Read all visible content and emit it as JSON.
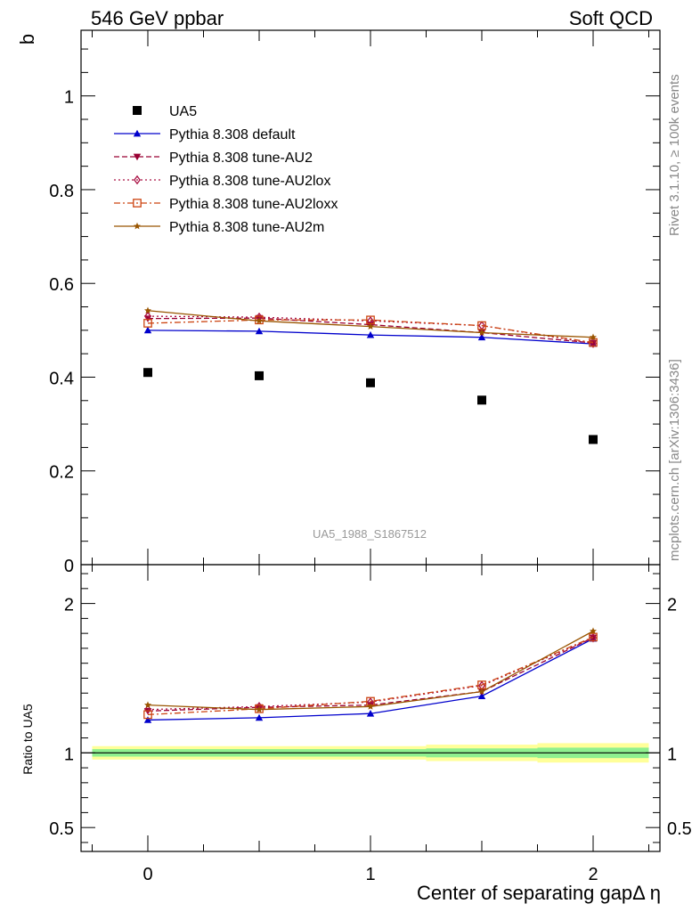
{
  "header": {
    "left_title": "546 GeV ppbar",
    "right_title": "Soft QCD"
  },
  "side_labels": {
    "rivet": "Rivet 3.1.10, ≥ 100k events",
    "source": "mcplots.cern.ch [arXiv:1306:3436]"
  },
  "watermark": "UA5_1988_S1867512",
  "chart_data": [
    {
      "type": "scatter",
      "panel": "main",
      "ylabel": "b",
      "ylim": [
        0,
        1.14
      ],
      "xlim": [
        -0.3,
        2.3
      ],
      "yticks": [
        0,
        0.2,
        0.4,
        0.6,
        0.8,
        1
      ],
      "ytick_labels": [
        "0",
        "0.2",
        "0.4",
        "0.6",
        "0.8",
        "1"
      ],
      "x": [
        0,
        0.5,
        1,
        1.5,
        2
      ],
      "legend_position": "top-left",
      "series": [
        {
          "name": "UA5",
          "kind": "data",
          "color": "#000000",
          "marker": "square",
          "dash": "none",
          "values": [
            0.41,
            0.403,
            0.388,
            0.351,
            0.267
          ]
        },
        {
          "name": "Pythia 8.308 default",
          "kind": "mc",
          "color": "#0000cc",
          "marker": "triangle-up",
          "dash": "none",
          "values": [
            0.5,
            0.498,
            0.49,
            0.485,
            0.471
          ]
        },
        {
          "name": "Pythia 8.308 tune-AU2",
          "kind": "mc",
          "color": "#990033",
          "marker": "triangle-down",
          "dash": "dash",
          "values": [
            0.525,
            0.526,
            0.512,
            0.495,
            0.473
          ]
        },
        {
          "name": "Pythia 8.308 tune-AU2lox",
          "kind": "mc",
          "color": "#aa1144",
          "marker": "diamond-open",
          "dash": "dot",
          "values": [
            0.53,
            0.528,
            0.52,
            0.51,
            0.472
          ]
        },
        {
          "name": "Pythia 8.308 tune-AU2loxx",
          "kind": "mc",
          "color": "#cc4411",
          "marker": "square-open",
          "dash": "dashdot",
          "values": [
            0.515,
            0.522,
            0.522,
            0.51,
            0.474
          ]
        },
        {
          "name": "Pythia 8.308 tune-AU2m",
          "kind": "mc",
          "color": "#995500",
          "marker": "star",
          "dash": "none",
          "values": [
            0.542,
            0.52,
            0.508,
            0.495,
            0.485
          ]
        }
      ]
    },
    {
      "type": "line",
      "panel": "ratio",
      "ylabel": "Ratio to UA5",
      "xlabel": "Center of separating gapΔ η",
      "ylim": [
        0.34,
        2.26
      ],
      "xlim": [
        -0.3,
        2.3
      ],
      "yticks": [
        0.5,
        1,
        2
      ],
      "ytick_labels": [
        "0.5",
        "1",
        "2"
      ],
      "xticks": [
        0,
        1,
        2
      ],
      "xtick_labels": [
        "0",
        "1",
        "2"
      ],
      "x": [
        0,
        0.5,
        1,
        1.5,
        2
      ],
      "bands": [
        {
          "x_low": -0.25,
          "x_high": 0.25,
          "inner": [
            0.975,
            1.025
          ],
          "outer": [
            0.955,
            1.045
          ]
        },
        {
          "x_low": 0.25,
          "x_high": 0.75,
          "inner": [
            0.975,
            1.025
          ],
          "outer": [
            0.955,
            1.045
          ]
        },
        {
          "x_low": 0.75,
          "x_high": 1.25,
          "inner": [
            0.975,
            1.025
          ],
          "outer": [
            0.955,
            1.045
          ]
        },
        {
          "x_low": 1.25,
          "x_high": 1.75,
          "inner": [
            0.97,
            1.03
          ],
          "outer": [
            0.945,
            1.055
          ]
        },
        {
          "x_low": 1.75,
          "x_high": 2.25,
          "inner": [
            0.965,
            1.035
          ],
          "outer": [
            0.935,
            1.065
          ]
        }
      ],
      "series": [
        {
          "name": "Pythia 8.308 default",
          "values": [
            1.22,
            1.235,
            1.263,
            1.38,
            1.764
          ]
        },
        {
          "name": "Pythia 8.308 tune-AU2",
          "values": [
            1.28,
            1.305,
            1.32,
            1.41,
            1.772
          ]
        },
        {
          "name": "Pythia 8.308 tune-AU2lox",
          "values": [
            1.29,
            1.31,
            1.34,
            1.45,
            1.77
          ]
        },
        {
          "name": "Pythia 8.308 tune-AU2loxx",
          "values": [
            1.256,
            1.295,
            1.345,
            1.455,
            1.775
          ]
        },
        {
          "name": "Pythia 8.308 tune-AU2m",
          "values": [
            1.32,
            1.29,
            1.31,
            1.41,
            1.815
          ]
        }
      ]
    }
  ]
}
